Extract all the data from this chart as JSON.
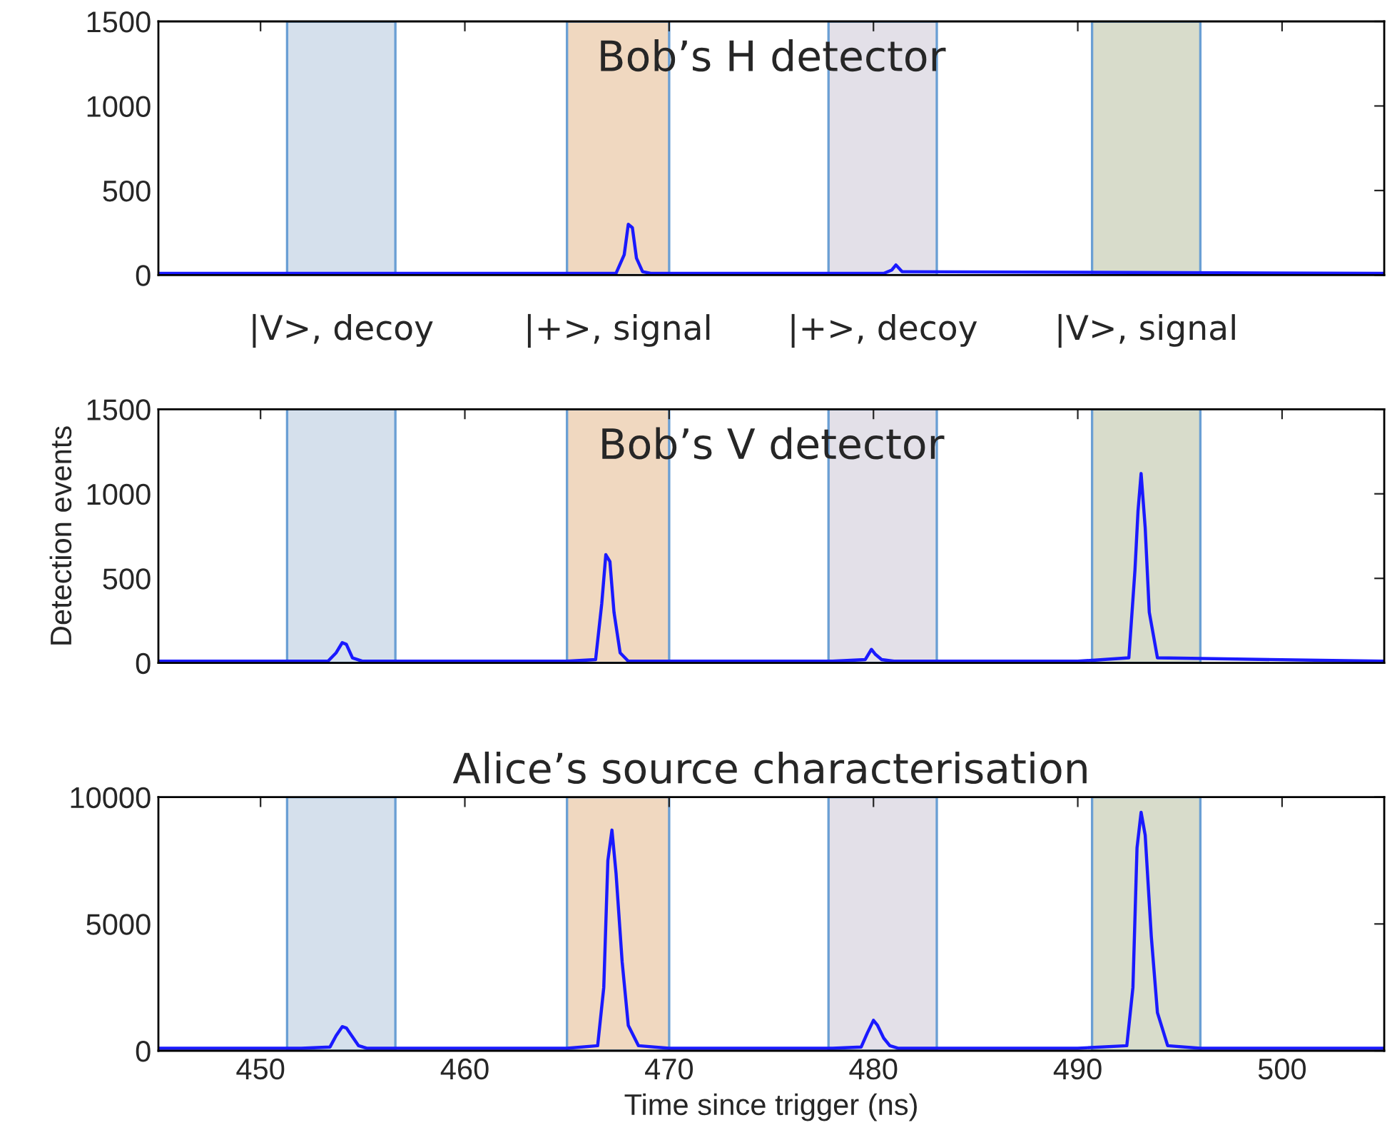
{
  "chart_data": [
    {
      "type": "line",
      "title": "Bob’s H detector",
      "xlim": [
        445,
        505
      ],
      "xticks": [
        450,
        460,
        470,
        480,
        490,
        500
      ],
      "ylim": [
        0,
        1500
      ],
      "yticks": [
        0,
        500,
        1000,
        1500
      ],
      "tick_labels": "y",
      "grid": false,
      "legend": false,
      "series": [
        {
          "color": "#1a1aff",
          "x": [
            445,
            467.4,
            467.8,
            468.0,
            468.2,
            468.4,
            468.7,
            469.1,
            480.5,
            480.9,
            481.1,
            481.4,
            505
          ],
          "values": [
            10,
            10,
            120,
            300,
            280,
            100,
            20,
            10,
            10,
            30,
            60,
            20,
            10
          ]
        }
      ],
      "bands": [
        {
          "axis": "x",
          "from": 451.3,
          "to": 456.6,
          "label": "|V>, decoy",
          "color": "#d5e0ec"
        },
        {
          "axis": "x",
          "from": 465.0,
          "to": 470.0,
          "label": "|+>, signal",
          "color": "#f0d8c0"
        },
        {
          "axis": "x",
          "from": 477.8,
          "to": 483.1,
          "label": "|+>, decoy",
          "color": "#e3e0e8"
        },
        {
          "axis": "x",
          "from": 490.7,
          "to": 496.0,
          "label": "|V>, signal",
          "color": "#d8dccb"
        }
      ]
    },
    {
      "type": "line",
      "title": "Bob’s V detector",
      "ylabel": "Detection events",
      "xlim": [
        445,
        505
      ],
      "xticks": [
        450,
        460,
        470,
        480,
        490,
        500
      ],
      "ylim": [
        0,
        1500
      ],
      "yticks": [
        0,
        500,
        1000,
        1500
      ],
      "tick_labels": "y",
      "grid": false,
      "legend": false,
      "series": [
        {
          "color": "#1a1aff",
          "x": [
            445,
            453.3,
            453.7,
            454.0,
            454.2,
            454.5,
            455,
            465,
            466.4,
            466.7,
            466.9,
            467.1,
            467.3,
            467.6,
            468,
            478,
            479.6,
            479.9,
            480.1,
            480.4,
            481,
            490,
            492.5,
            492.8,
            492.95,
            493.1,
            493.3,
            493.5,
            493.9,
            505
          ],
          "values": [
            10,
            10,
            60,
            120,
            110,
            30,
            10,
            10,
            20,
            350,
            640,
            600,
            300,
            60,
            10,
            10,
            20,
            80,
            50,
            20,
            10,
            10,
            30,
            550,
            900,
            1120,
            800,
            300,
            30,
            10
          ]
        }
      ],
      "bands": [
        {
          "axis": "x",
          "from": 451.3,
          "to": 456.6,
          "color": "#d5e0ec"
        },
        {
          "axis": "x",
          "from": 465.0,
          "to": 470.0,
          "color": "#f0d8c0"
        },
        {
          "axis": "x",
          "from": 477.8,
          "to": 483.1,
          "color": "#e3e0e8"
        },
        {
          "axis": "x",
          "from": 490.7,
          "to": 496.0,
          "color": "#d8dccb"
        }
      ]
    },
    {
      "type": "line",
      "title": "Alice’s source characterisation",
      "xlabel": "Time since trigger (ns)",
      "xlim": [
        445,
        505
      ],
      "xticks": [
        450,
        460,
        470,
        480,
        490,
        500
      ],
      "ylim": [
        0,
        10000
      ],
      "yticks": [
        0,
        5000,
        10000
      ],
      "grid": false,
      "legend": false,
      "series": [
        {
          "color": "#1a1aff",
          "x": [
            445,
            452,
            453.4,
            453.7,
            454.0,
            454.2,
            454.5,
            454.8,
            455.2,
            456,
            465,
            466.5,
            466.8,
            467.0,
            467.2,
            467.4,
            467.7,
            468.0,
            468.5,
            470,
            478,
            479.4,
            479.7,
            480.0,
            480.2,
            480.5,
            480.8,
            481.2,
            483,
            490,
            492.4,
            492.7,
            492.9,
            493.1,
            493.3,
            493.6,
            493.9,
            494.4,
            496,
            505
          ],
          "values": [
            100,
            100,
            150,
            600,
            950,
            900,
            550,
            200,
            100,
            100,
            100,
            200,
            2500,
            7500,
            8700,
            7000,
            3500,
            1000,
            200,
            100,
            100,
            150,
            700,
            1200,
            1000,
            500,
            200,
            100,
            100,
            100,
            200,
            2500,
            8000,
            9400,
            8500,
            4500,
            1500,
            200,
            100,
            100
          ]
        }
      ],
      "bands": [
        {
          "axis": "x",
          "from": 451.3,
          "to": 456.6,
          "color": "#d5e0ec"
        },
        {
          "axis": "x",
          "from": 465.0,
          "to": 470.0,
          "color": "#f0d8c0"
        },
        {
          "axis": "x",
          "from": 477.8,
          "to": 483.1,
          "color": "#e3e0e8"
        },
        {
          "axis": "x",
          "from": 490.7,
          "to": 496.0,
          "color": "#d8dccb"
        }
      ]
    }
  ]
}
